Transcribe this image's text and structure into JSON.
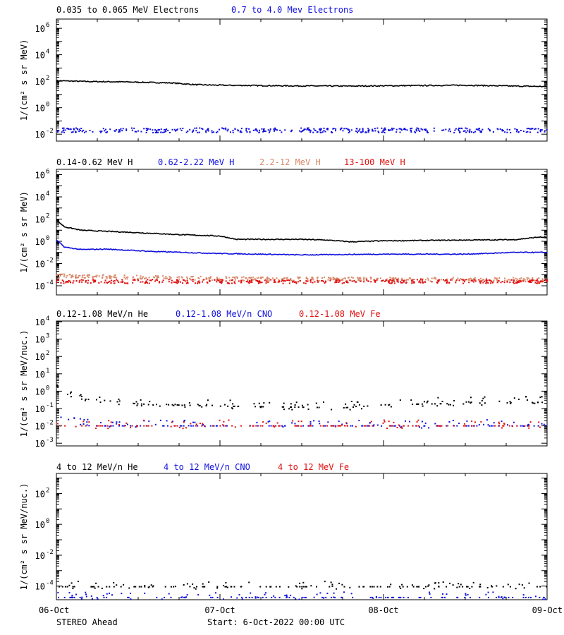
{
  "colors": {
    "black": "#000000",
    "blue": "#1010e0",
    "salmon": "#d98868",
    "red": "#e01010"
  },
  "footer": {
    "spacecraft": "STEREO Ahead",
    "start": "Start:  6-Oct-2022 00:00 UTC"
  },
  "chart_data": [
    {
      "type": "scatter",
      "panel": "electrons",
      "ylabel": "1/(cm² s sr MeV)",
      "yscale": "log",
      "ylim": [
        0.003,
        5000000
      ],
      "yticks": [
        {
          "v": 1000000.0,
          "m": "10",
          "e": "6"
        },
        {
          "v": 10000.0,
          "m": "10",
          "e": "4"
        },
        {
          "v": 100.0,
          "m": "10",
          "e": "2"
        },
        {
          "v": 1,
          "m": "10",
          "e": "0"
        },
        {
          "v": 0.01,
          "m": "10",
          "e": "-2"
        }
      ],
      "xlim": [
        "06-Oct",
        "09-Oct"
      ],
      "legend": [
        {
          "text": "0.035 to 0.065 MeV Electrons",
          "color": "black"
        },
        {
          "text": "0.7 to 4.0 Mev Electrons",
          "color": "blue"
        }
      ],
      "series": [
        {
          "name": "0.035 to 0.065 MeV Electrons",
          "color": "black",
          "style": "line",
          "x": [
            0,
            0.2,
            0.4,
            0.7,
            0.85,
            1.0,
            1.4,
            1.8,
            2.2,
            2.5,
            2.8,
            3.0
          ],
          "y": [
            110,
            95,
            90,
            75,
            55,
            50,
            45,
            43,
            47,
            50,
            43,
            40
          ]
        },
        {
          "name": "0.7 to 4.0 Mev Electrons",
          "color": "blue",
          "style": "dots",
          "x": [
            0,
            3.0
          ],
          "y": [
            0.022,
            0.022
          ]
        }
      ]
    },
    {
      "type": "scatter",
      "panel": "protons",
      "ylabel": "1/(cm² s sr MeV)",
      "yscale": "log",
      "ylim": [
        1.5e-05,
        3000000
      ],
      "yticks": [
        {
          "v": 1000000.0,
          "m": "10",
          "e": "6"
        },
        {
          "v": 10000.0,
          "m": "10",
          "e": "4"
        },
        {
          "v": 100.0,
          "m": "10",
          "e": "2"
        },
        {
          "v": 1,
          "m": "10",
          "e": "0"
        },
        {
          "v": 0.01,
          "m": "10",
          "e": "-2"
        },
        {
          "v": 0.0001,
          "m": "10",
          "e": "-4"
        }
      ],
      "xlim": [
        "06-Oct",
        "09-Oct"
      ],
      "legend": [
        {
          "text": "0.14-0.62 MeV H",
          "color": "black"
        },
        {
          "text": "0.62-2.22 MeV H",
          "color": "blue"
        },
        {
          "text": "2.2-12 MeV H",
          "color": "salmon"
        },
        {
          "text": "13-100 MeV H",
          "color": "red"
        }
      ],
      "series": [
        {
          "name": "0.14-0.62 MeV H",
          "color": "black",
          "style": "line",
          "x": [
            0,
            0.05,
            0.15,
            0.3,
            0.5,
            0.75,
            1.0,
            1.1,
            1.5,
            1.65,
            1.8,
            2.0,
            2.5,
            2.8,
            2.95,
            3.0
          ],
          "y": [
            80,
            20,
            10,
            8,
            6,
            4,
            3,
            1.5,
            1.5,
            1.3,
            0.9,
            1.1,
            1.3,
            1.4,
            2.4,
            2.2
          ]
        },
        {
          "name": "0.62-2.22 MeV H",
          "color": "blue",
          "style": "line",
          "x": [
            0,
            0.05,
            0.15,
            0.3,
            0.6,
            1.0,
            1.5,
            2.0,
            2.5,
            2.8,
            3.0
          ],
          "y": [
            1.3,
            0.3,
            0.18,
            0.2,
            0.12,
            0.08,
            0.06,
            0.07,
            0.07,
            0.1,
            0.1
          ]
        },
        {
          "name": "2.2-12 MeV H",
          "color": "salmon",
          "style": "dots",
          "x": [
            0,
            1.0,
            3.0
          ],
          "y": [
            0.0009,
            0.0005,
            0.0004
          ]
        },
        {
          "name": "13-100 MeV H",
          "color": "red",
          "style": "dots",
          "x": [
            0,
            3.0
          ],
          "y": [
            0.00028,
            0.00028
          ]
        }
      ]
    },
    {
      "type": "scatter",
      "panel": "heavy-low",
      "ylabel": "1/(cm² s sr MeV/nuc.)",
      "yscale": "log",
      "ylim": [
        0.0007,
        11000
      ],
      "yticks": [
        {
          "v": 10000.0,
          "m": "10",
          "e": "4"
        },
        {
          "v": 1000.0,
          "m": "10",
          "e": "3"
        },
        {
          "v": 100.0,
          "m": "10",
          "e": "2"
        },
        {
          "v": 10,
          "m": "10",
          "e": "1"
        },
        {
          "v": 1,
          "m": "10",
          "e": "0"
        },
        {
          "v": 0.1,
          "m": "10",
          "e": "-1"
        },
        {
          "v": 0.01,
          "m": "10",
          "e": "-2"
        },
        {
          "v": 0.001,
          "m": "10",
          "e": "-3"
        }
      ],
      "xlim": [
        "06-Oct",
        "09-Oct"
      ],
      "legend": [
        {
          "text": "0.12-1.08 MeV/n He",
          "color": "black"
        },
        {
          "text": "0.12-1.08 MeV/n CNO",
          "color": "blue"
        },
        {
          "text": "0.12-1.08 MeV Fe",
          "color": "red"
        }
      ],
      "series": [
        {
          "name": "0.12-1.08 MeV/n He",
          "color": "black",
          "style": "sparse",
          "x": [
            0,
            0.1,
            0.25,
            0.5,
            1.0,
            1.5,
            1.75,
            2.0,
            2.5,
            3.0
          ],
          "y": [
            2.0,
            0.4,
            0.35,
            0.2,
            0.15,
            0.13,
            0.12,
            0.18,
            0.22,
            0.25
          ]
        },
        {
          "name": "0.12-1.08 MeV/n CNO",
          "color": "blue",
          "style": "sparse",
          "x": [
            0,
            0.2,
            3.0
          ],
          "y": [
            0.04,
            0.011,
            0.011
          ]
        },
        {
          "name": "0.12-1.08 MeV Fe",
          "color": "red",
          "style": "sparse",
          "x": [
            0,
            3.0
          ],
          "y": [
            0.011,
            0.011
          ]
        }
      ]
    },
    {
      "type": "scatter",
      "panel": "heavy-high",
      "ylabel": "1/(cm² s sr MeV/nuc.)",
      "yscale": "log",
      "ylim": [
        1.3e-05,
        2000
      ],
      "yticks": [
        {
          "v": 100,
          "m": "10",
          "e": "2"
        },
        {
          "v": 1,
          "m": "10",
          "e": "0"
        },
        {
          "v": 0.01,
          "m": "10",
          "e": "-2"
        },
        {
          "v": 0.0001,
          "m": "10",
          "e": "-4"
        }
      ],
      "xlim": [
        "06-Oct",
        "09-Oct"
      ],
      "legend": [
        {
          "text": "4 to 12 MeV/n He",
          "color": "black"
        },
        {
          "text": "4 to 12 MeV/n CNO",
          "color": "blue"
        },
        {
          "text": "4 to 12 MeV Fe",
          "color": "red"
        }
      ],
      "series": [
        {
          "name": "4 to 12 MeV/n He",
          "color": "black",
          "style": "sparse",
          "x": [
            0,
            3.0
          ],
          "y": [
            0.0001,
            0.0001
          ]
        },
        {
          "name": "4 to 12 MeV/n CNO",
          "color": "blue",
          "style": "sparse",
          "x": [
            0,
            3.0
          ],
          "y": [
            2e-05,
            2e-05
          ]
        },
        {
          "name": "4 to 12 MeV Fe",
          "color": "red",
          "style": "none",
          "x": [],
          "y": []
        }
      ]
    }
  ],
  "xaxis": {
    "ticks": [
      {
        "v": 0,
        "label": "06-Oct"
      },
      {
        "v": 1,
        "label": "07-Oct"
      },
      {
        "v": 2,
        "label": "08-Oct"
      },
      {
        "v": 3,
        "label": "09-Oct"
      }
    ]
  }
}
